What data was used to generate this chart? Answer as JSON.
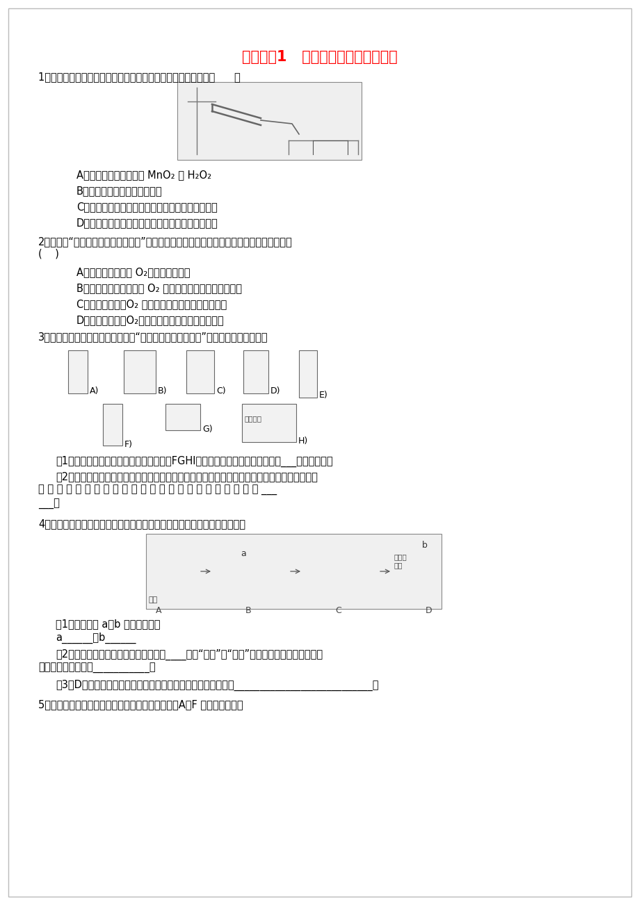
{
  "title": "实验活剸1   氧气的实验室制取与性质",
  "title_color": "#FF0000",
  "bg_color": "#FFFFFF",
  "q1": "1．实验室用如图所示装置制取氧气，下列有关说法不正确的是（      ）",
  "q1_opts": [
    "A．试管中加入的药品是 MnO₂ 和 H₂O₂",
    "B．实验前应检查装置的气密性",
    "C．待导管口产生连续均匀的气泡时才开始收集氧气",
    "D．实验结束时应先从水槽中取出导管，再停止加热"
  ],
  "q2_line1": "2．在进行“氧气的实验室制取与性质”实验时，某同学制得的氧气不纯，你认为可能的原因是",
  "q2_line2": "(    )",
  "q2_opts": [
    "A．用排水法收集时 O₂，集气瓶装满水",
    "B．用向上排空气法收集 O₂ 时，导管伸入到集气瓶的底部",
    "C．用排水法收集O₂ 时，导管口冒出气泡，立即收集",
    "D．用排水法收集O₂，收集满后，在水下盖上玻璃片"
  ],
  "q3": "3．小科用如图所示的化学仪器装配“加热高锤酸鿨制取氧气”的实验装置，请回答：",
  "q3_sub1": "（1）装配一套该实验装置，除选用序号为FGHI的仪器外，还需要用到的仪器有___（填序号）。",
  "q3_sub2a": "（2）装配该气体发生装置时，小科在检查完装置的气密性后，放置好酒精灯，根据酒精灯的高度",
  "q3_sub2b": "将 盛 有 药 品 的 试 管 固 定 在 铁 架 台 上 ， 固 定 试 管 时 应 做 到 ___",
  "q3_sub2c": "___。",
  "q4": "4．如图所示是做木炭在氧气中燃烧全过程的操作示意图，试回答下列问题：",
  "q4_sub1": "（1）指出图中 a、b 仪器的名称：",
  "q4_ans1": "a______，b______",
  "q4_sub2a": "（2）将烧红的木炭伸入集气瓶中时，应____（填“缓慢”或“迅速”）伸入，效果更好。木炭在",
  "q4_sub2b": "氧气中燃烧的现象是___________。",
  "q4_sub3": "（3）D图中，待集气瓶冷却后，倒入澄清的石灰水振荡，观察到___________________________。",
  "q5": "5．同学们利用如图所示装置进行气体的制备实验（A～F 为装置编号）。"
}
